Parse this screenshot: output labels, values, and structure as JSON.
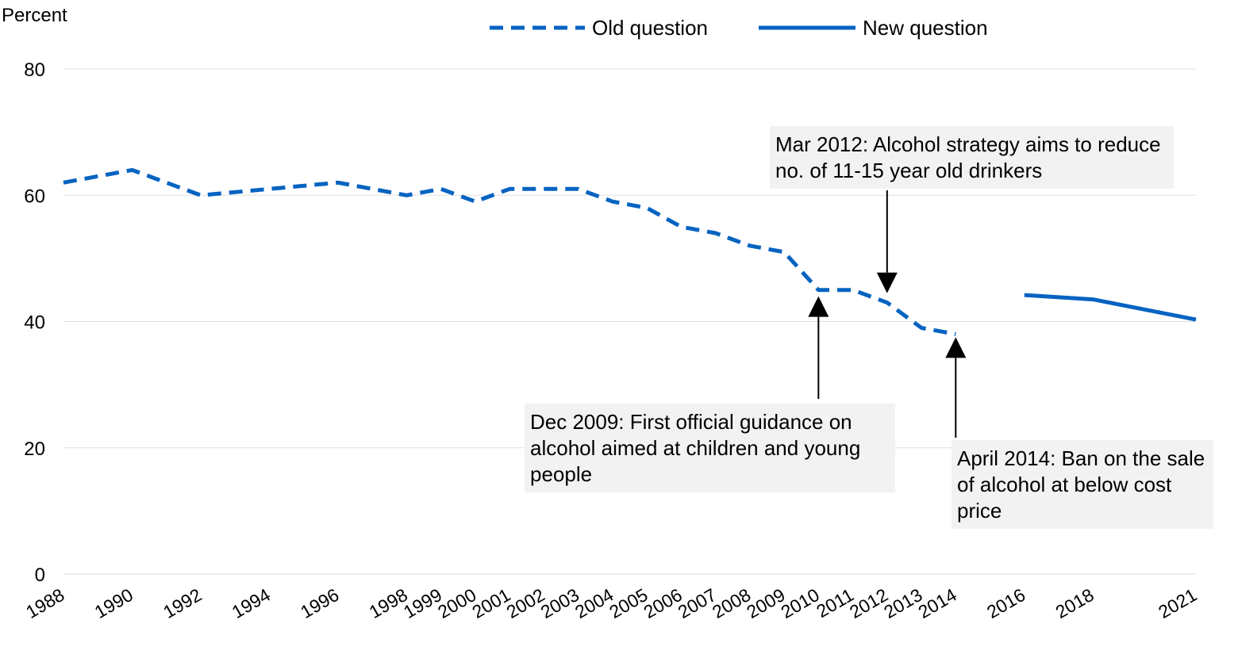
{
  "chart_data": {
    "type": "line",
    "ylabel": "Percent",
    "ylim": [
      0,
      80
    ],
    "yticks": [
      0,
      20,
      40,
      60,
      80
    ],
    "grid": true,
    "legend_position": "top",
    "x": [
      "1988",
      "1990",
      "1992",
      "1994",
      "1996",
      "1998",
      "1999",
      "2000",
      "2001",
      "2002",
      "2003",
      "2004",
      "2005",
      "2006",
      "2007",
      "2008",
      "2009",
      "2010",
      "2011",
      "2012",
      "2013",
      "2014",
      "2016",
      "2018",
      "2021"
    ],
    "series": [
      {
        "name": "Old question",
        "style": "dashed",
        "color": "#0563c1",
        "points": [
          [
            1988,
            62
          ],
          [
            1990,
            64
          ],
          [
            1992,
            60
          ],
          [
            1994,
            61
          ],
          [
            1996,
            62
          ],
          [
            1998,
            60
          ],
          [
            1999,
            61
          ],
          [
            2000,
            59
          ],
          [
            2001,
            61
          ],
          [
            2002,
            61
          ],
          [
            2003,
            61
          ],
          [
            2004,
            59
          ],
          [
            2005,
            58
          ],
          [
            2006,
            55
          ],
          [
            2007,
            54
          ],
          [
            2008,
            52
          ],
          [
            2009,
            51
          ],
          [
            2010,
            45
          ],
          [
            2011,
            45
          ],
          [
            2012,
            43
          ],
          [
            2013,
            39
          ],
          [
            2014,
            38
          ]
        ]
      },
      {
        "name": "New question",
        "style": "solid",
        "color": "#0563c1",
        "points": [
          [
            2016,
            44.2
          ],
          [
            2018,
            43.5
          ],
          [
            2021,
            40.3
          ]
        ]
      }
    ],
    "annotations": [
      {
        "text": "Mar 2012: Alcohol strategy aims to reduce no. of 11-15 year old drinkers",
        "target_year": 2012,
        "target_value": 45
      },
      {
        "text": "Dec 2009: First  official guidance on alcohol aimed at children and young people",
        "target_year": 2010,
        "target_value": 43
      },
      {
        "text": "April 2014: Ban on the sale of alcohol at below cost price",
        "target_year": 2014,
        "target_value": 37
      }
    ]
  }
}
